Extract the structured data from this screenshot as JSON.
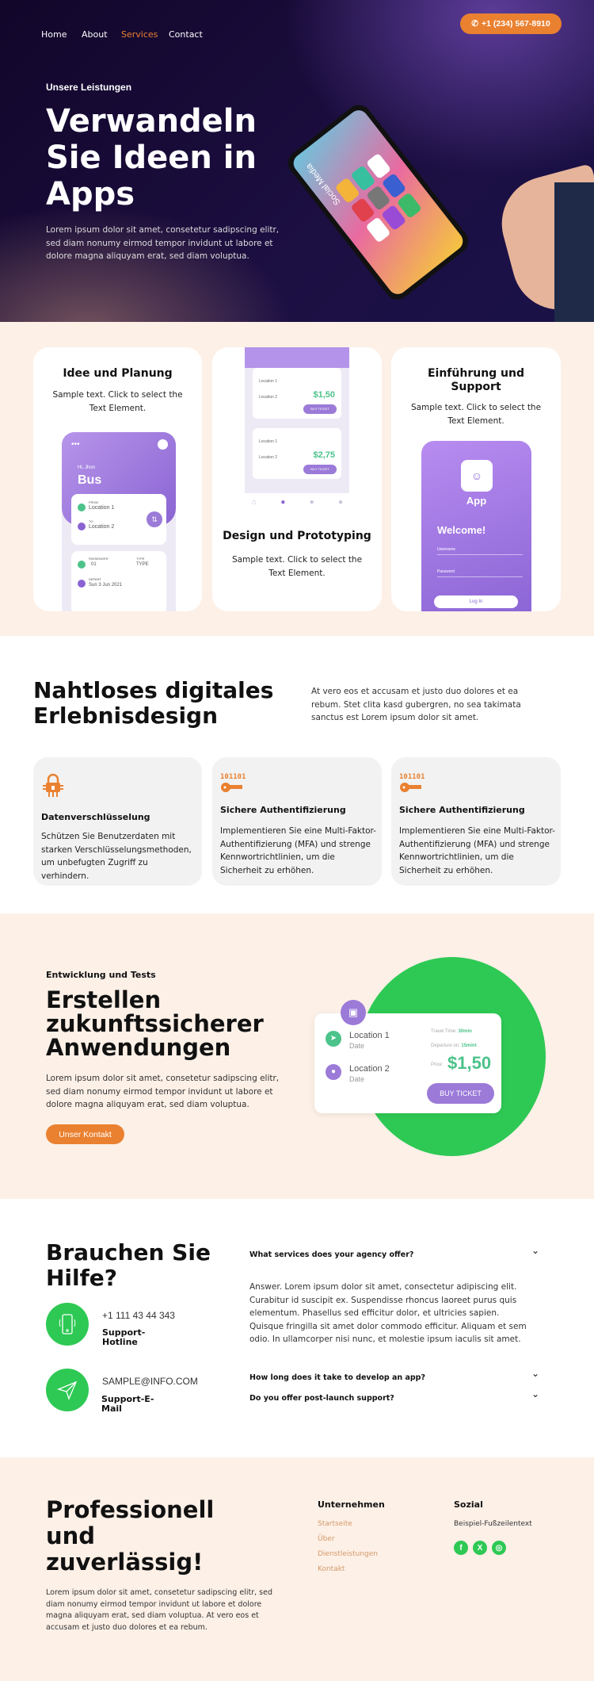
{
  "nav": {
    "items": [
      "Home",
      "About",
      "Services",
      "Contact"
    ],
    "active": "Services",
    "phone": "+1 (234) 567-8910"
  },
  "hero": {
    "kicker": "Unsere Leistungen",
    "title": [
      "Verwandeln",
      "Sie Ideen in",
      "Apps"
    ],
    "text": "Lorem ipsum dolor sit amet, consetetur sadipscing elitr, sed diam nonumy eirmod tempor invidunt ut labore et dolore magna aliquyam erat, sed diam voluptua.",
    "phone_screen_label": "Social Media"
  },
  "steps": [
    {
      "title": "Idee und Planung",
      "text": "Sample text. Click to select the Text Element.",
      "mock": {
        "greeting": "Hi, Jhon",
        "title": "Bus",
        "from_label": "FROM",
        "from": "Location 1",
        "to_label": "TO",
        "to": "Location 2",
        "passenger_label": "PASSENGER",
        "passenger": "01",
        "type_label": "TYPE",
        "type": "TYPE",
        "depart_label": "DEPART",
        "depart": "Sun 3 Jun 2021"
      }
    },
    {
      "title": "Design und Prototyping",
      "text": "Sample text. Click to select the Text Element.",
      "mock": {
        "loc1": "Location 1",
        "loc2": "Location 2",
        "price1": "$1,50",
        "price2": "$2,75",
        "buy": "BUY TICKET"
      }
    },
    {
      "title": "Einführung und Support",
      "text": "Sample text. Click to select the Text Element.",
      "mock": {
        "app": "App",
        "welcome": "Welcome!",
        "username": "Username",
        "password": "Password",
        "login": "Log In"
      }
    }
  ],
  "experience": {
    "title": [
      "Nahtloses digitales",
      "Erlebnisdesign"
    ],
    "text": "At vero eos et accusam et justo duo dolores et ea rebum. Stet clita kasd gubergren, no sea takimata sanctus est Lorem ipsum dolor sit amet.",
    "features": [
      {
        "icon": "lock-circuit-icon",
        "title": "Datenverschlüsselung",
        "text": "Schützen Sie Benutzerdaten mit starken Verschlüsselungsmethoden, um unbefugten Zugriff zu verhindern."
      },
      {
        "icon": "binary-key-icon",
        "title": "Sichere Authentifizierung",
        "text": "Implementieren Sie eine Multi-Faktor-Authentifizierung (MFA) und strenge Kennwortrichtlinien, um die Sicherheit zu erhöhen."
      },
      {
        "icon": "binary-key-icon",
        "title": "Sichere Authentifizierung",
        "text": "Implementieren Sie eine Multi-Faktor-Authentifizierung (MFA) und strenge Kennwortrichtlinien, um die Sicherheit zu erhöhen."
      }
    ]
  },
  "dev": {
    "kicker": "Entwicklung und Tests",
    "title": [
      "Erstellen",
      "zukunftssicherer",
      "Anwendungen"
    ],
    "text": "Lorem ipsum dolor sit amet, consetetur sadipscing elitr, sed diam nonumy eirmod tempor invidunt ut labore et dolore magna aliquyam erat, sed diam voluptua.",
    "button": "Unser Kontakt",
    "ticket": {
      "loc1": "Location 1",
      "loc2": "Location 2",
      "date": "Date",
      "travel_label": "Travel Time:",
      "travel": "30min",
      "departure_label": "Departure on:",
      "departure": "15mint",
      "price_label": "Price:",
      "price": "$1,50",
      "buy": "BUY TICKET"
    }
  },
  "help": {
    "title": [
      "Brauchen Sie",
      "Hilfe?"
    ],
    "phone": "+1 111 43 44 343",
    "phone_label": [
      "Support-",
      "Hotline"
    ],
    "email": "SAMPLE@INFO.COM",
    "email_label": [
      "Support-E-",
      "Mail"
    ],
    "faq": [
      {
        "q": "What services does your agency offer?",
        "a": "Answer. Lorem ipsum dolor sit amet, consectetur adipiscing elit. Curabitur id suscipit ex. Suspendisse rhoncus laoreet purus quis elementum. Phasellus sed efficitur dolor, et ultricies sapien. Quisque fringilla sit amet dolor commodo efficitur. Aliquam et sem odio. In ullamcorper nisi nunc, et molestie ipsum iaculis sit amet."
      },
      {
        "q": "How long does it take to develop an app?"
      },
      {
        "q": "Do you offer post-launch support?"
      }
    ]
  },
  "footer": {
    "title": [
      "Professionell",
      "und",
      "zuverlässig!"
    ],
    "text": "Lorem ipsum dolor sit amet, consetetur sadipscing elitr, sed diam nonumy eirmod tempor invidunt ut labore et dolore magna aliquyam erat, sed diam voluptua. At vero eos et accusam et justo duo dolores et ea rebum.",
    "company_title": "Unternehmen",
    "links": [
      "Startseite",
      "Über",
      "Dienstleistungen",
      "Kontakt"
    ],
    "social_title": "Sozial",
    "social_text": "Beispiel-Fußzeilentext",
    "social": [
      "facebook-icon",
      "x-icon",
      "instagram-icon"
    ]
  },
  "colors": {
    "accent": "#ea8130",
    "green": "#2ec954",
    "purple": "#9b7ad8",
    "beige": "#fdf0e7"
  }
}
